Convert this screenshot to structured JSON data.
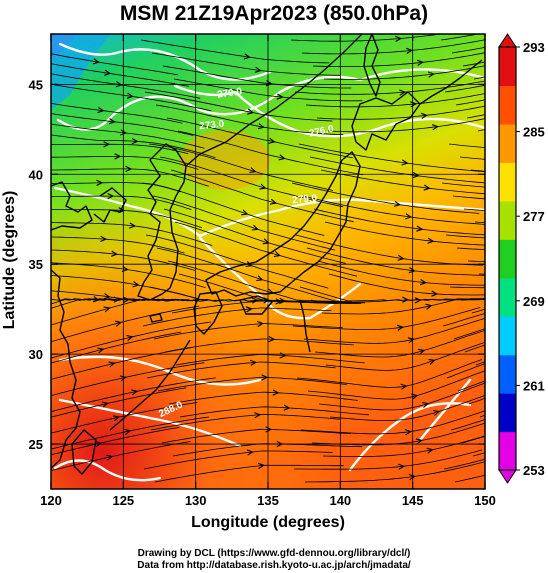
{
  "title": "MSM 21Z19Apr2023 (850.0hPa)",
  "x_axis": {
    "label": "Longitude (degrees)",
    "ticks": [
      "120",
      "125",
      "130",
      "135",
      "140",
      "145",
      "150"
    ]
  },
  "y_axis": {
    "label": "Latitude  (degrees)",
    "ticks": [
      "45",
      "40",
      "35",
      "30",
      "25"
    ]
  },
  "colorbar": {
    "ticks": [
      "293",
      "285",
      "277",
      "269",
      "261",
      "253"
    ],
    "min": 253,
    "max": 293,
    "colors": [
      "#e400e4",
      "#0000c8",
      "#0060ff",
      "#00ccff",
      "#00e080",
      "#20d020",
      "#a8e000",
      "#ffe000",
      "#ff9800",
      "#ff5000",
      "#e01010"
    ]
  },
  "contour_labels": [
    "270.0",
    "273.0",
    "276.0",
    "279.0",
    "288.0"
  ],
  "credits": {
    "line1": "Drawing by DCL (https://www.gfd-dennou.org/library/dcl/)",
    "line2": "Data from http://database.rish.kyoto-u.ac.jp/arch/jmadata/"
  }
}
